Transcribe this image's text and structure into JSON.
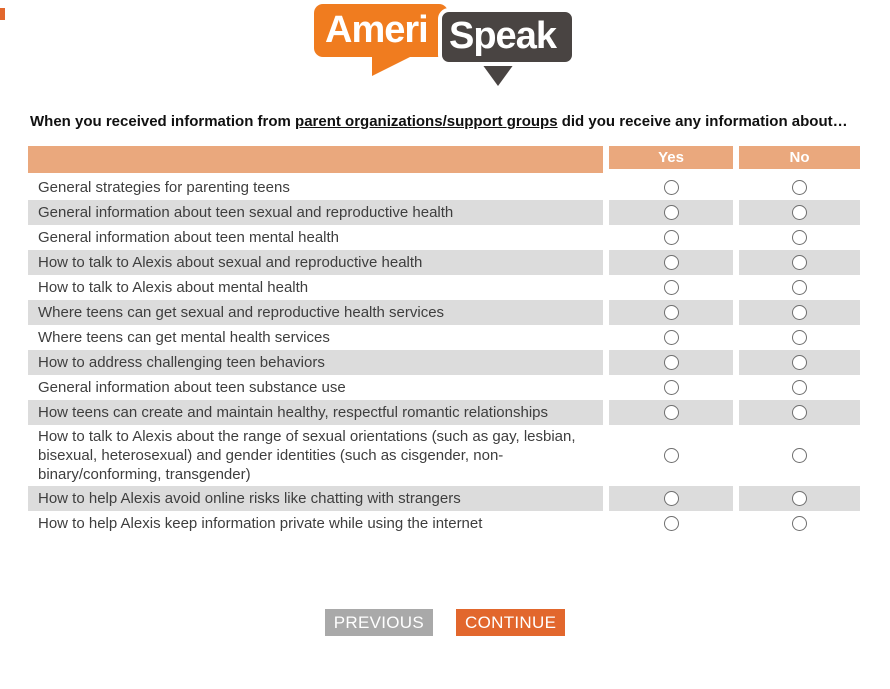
{
  "logo": {
    "part1": "Ameri",
    "part2": "Speak"
  },
  "question": {
    "prefix": "When you received information from ",
    "underlined": "parent organizations/support groups",
    "suffix": " did you receive any information about…"
  },
  "table": {
    "header": {
      "yes": "Yes",
      "no": "No"
    },
    "rows": [
      "General strategies for parenting teens",
      "General information about teen sexual and reproductive health",
      "General information about teen mental health",
      "How to talk to Alexis about sexual and reproductive health",
      "How to talk to Alexis about mental health",
      "Where teens can get sexual and reproductive health services",
      "Where teens can get mental health services",
      "How to address challenging teen behaviors",
      "General information about teen substance use",
      "How teens can create and maintain healthy, respectful romantic relationships",
      "How to talk to Alexis about the range of sexual orientations (such as gay, lesbian, bisexual, heterosexual) and gender identities (such as cisgender, non-binary/conforming, transgender)",
      "How to help Alexis avoid online risks like chatting with strangers",
      "How to help Alexis keep information private while using the internet"
    ]
  },
  "buttons": {
    "previous": "PREVIOUS",
    "continue": "CONTINUE"
  },
  "colors": {
    "logo_orange": "#F07C1F",
    "logo_dark": "#494442",
    "header_bg": "#EAA87D",
    "row_shaded": "#DCDCDC",
    "row_text": "#3E3E3E",
    "button_gray": "#A9A9A9",
    "button_orange": "#E2672D"
  }
}
